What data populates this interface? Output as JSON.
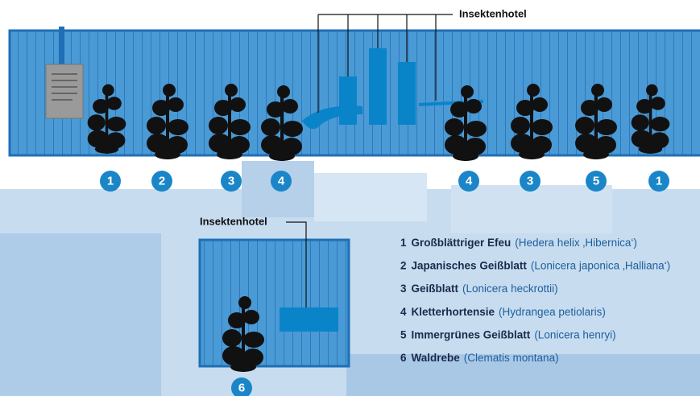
{
  "top_panel": {
    "label": "Insektenhotel",
    "badges": [
      "1",
      "2",
      "3",
      "4",
      "4",
      "3",
      "5",
      "1"
    ]
  },
  "bottom_panel": {
    "label": "Insektenhotel",
    "badge": "6"
  },
  "legend": [
    {
      "number": "1",
      "name": "Großblättriger Efeu",
      "latin": "(Hedera helix ‚Hibernica‘)"
    },
    {
      "number": "2",
      "name": "Japanisches Geißblatt",
      "latin": "(Lonicera japonica ‚Halliana‘)"
    },
    {
      "number": "3",
      "name": "Geißblatt",
      "latin": "(Lonicera heckrottii)"
    },
    {
      "number": "4",
      "name": "Kletterhortensie",
      "latin": "(Hydrangea petiolaris)"
    },
    {
      "number": "5",
      "name": "Immergrünes Geißblatt",
      "latin": "(Lonicera henryi)"
    },
    {
      "number": "6",
      "name": "Waldrebe",
      "latin": "(Clematis montana)"
    }
  ]
}
